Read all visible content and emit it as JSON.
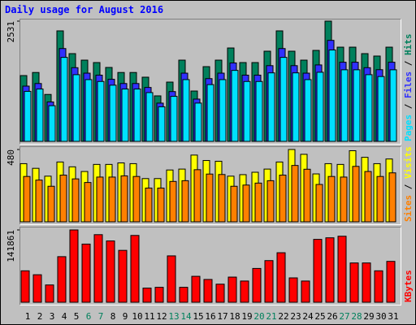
{
  "title": "Daily usage for August 2016",
  "categories": [
    "1",
    "2",
    "3",
    "4",
    "5",
    "6",
    "7",
    "8",
    "9",
    "10",
    "11",
    "12",
    "13",
    "14",
    "15",
    "16",
    "17",
    "18",
    "19",
    "20",
    "21",
    "22",
    "23",
    "24",
    "25",
    "26",
    "27",
    "28",
    "29",
    "30",
    "31"
  ],
  "weekend_indices": [
    5,
    6,
    12,
    13,
    19,
    20,
    26,
    27
  ],
  "weekday_color": "#000000",
  "weekend_color": "#00805c",
  "legend_separator": " / ",
  "chart_data": [
    {
      "type": "bar",
      "ylim": [
        0,
        2531
      ],
      "yticks": [
        2531
      ],
      "series": [
        {
          "name": "Hits",
          "color": "#00805c",
          "values": [
            1385,
            1450,
            988,
            2326,
            1847,
            1710,
            1659,
            1556,
            1450,
            1450,
            1351,
            958,
            1248,
            1710,
            1060,
            1573,
            1710,
            1966,
            1659,
            1659,
            1898,
            2326,
            1898,
            1710,
            1915,
            2531,
            1983,
            1983,
            1847,
            1796,
            1983
          ]
        },
        {
          "name": "Files",
          "color": "#3030ff",
          "values": [
            1163,
            1218,
            830,
            1954,
            1551,
            1436,
            1394,
            1307,
            1218,
            1218,
            1135,
            805,
            1048,
            1436,
            890,
            1321,
            1436,
            1651,
            1394,
            1394,
            1594,
            1954,
            1594,
            1436,
            1609,
            2126,
            1666,
            1666,
            1551,
            1509,
            1666
          ]
        },
        {
          "name": "Pages",
          "color": "#00e0ff",
          "values": [
            1053,
            1102,
            751,
            1768,
            1404,
            1300,
            1261,
            1183,
            1102,
            1102,
            1027,
            728,
            948,
            1300,
            806,
            1195,
            1300,
            1494,
            1261,
            1261,
            1442,
            1768,
            1442,
            1300,
            1455,
            1924,
            1507,
            1507,
            1404,
            1365,
            1507
          ]
        }
      ]
    },
    {
      "type": "bar",
      "ylim": [
        0,
        480
      ],
      "yticks": [
        480
      ],
      "series": [
        {
          "name": "Visits",
          "color": "#ffff00",
          "values": [
            386,
            355,
            303,
            397,
            365,
            334,
            381,
            381,
            391,
            386,
            287,
            287,
            344,
            350,
            443,
            407,
            402,
            303,
            313,
            329,
            350,
            397,
            480,
            448,
            318,
            386,
            381,
            472,
            428,
            386,
            417
          ]
        },
        {
          "name": "Sites",
          "color": "#ff8000",
          "values": [
            301,
            277,
            236,
            310,
            285,
            261,
            297,
            297,
            305,
            301,
            224,
            224,
            268,
            273,
            346,
            317,
            314,
            236,
            244,
            257,
            273,
            310,
            374,
            349,
            248,
            301,
            297,
            368,
            334,
            301,
            325
          ]
        }
      ]
    },
    {
      "type": "bar",
      "ylim": [
        0,
        141861
      ],
      "yticks": [
        141861
      ],
      "series": [
        {
          "name": "KBytes",
          "color": "#ff0000",
          "values": [
            61680,
            53970,
            33924,
            89436,
            141861,
            114108,
            132612,
            120276,
            101772,
            131070,
            27756,
            29298,
            90978,
            29298,
            50886,
            44718,
            35466,
            49344,
            41634,
            66306,
            81726,
            97146,
            47802,
            41634,
            123360,
            126444,
            129528,
            77100,
            77100,
            61680,
            80184
          ]
        }
      ]
    }
  ]
}
